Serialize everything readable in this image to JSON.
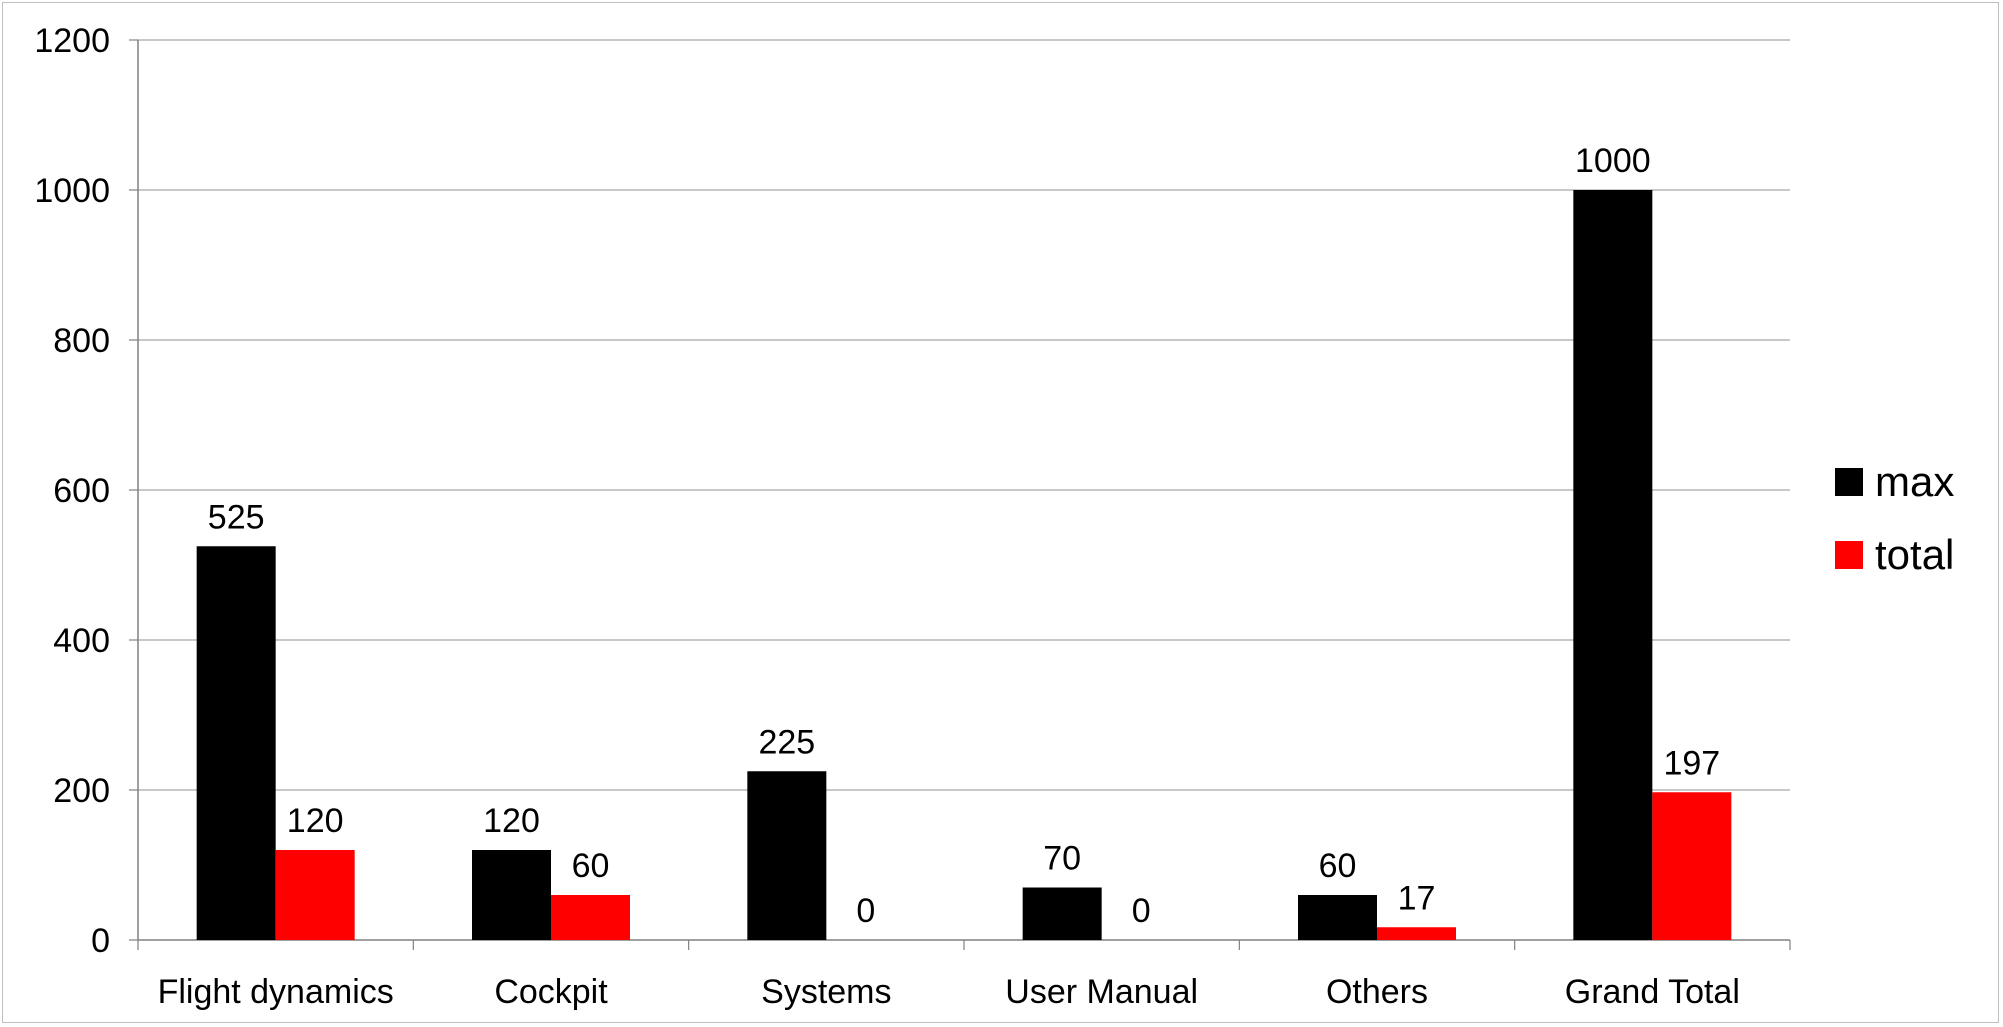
{
  "chart_data": {
    "type": "bar",
    "title": "",
    "xlabel": "",
    "ylabel": "",
    "categories": [
      "Flight dynamics",
      "Cockpit",
      "Systems",
      "User Manual",
      "Others",
      "Grand Total"
    ],
    "series": [
      {
        "name": "max",
        "color": "#000000",
        "values": [
          525,
          120,
          225,
          70,
          60,
          1000
        ]
      },
      {
        "name": "total",
        "color": "#ff0000",
        "values": [
          120,
          60,
          0,
          0,
          17,
          197
        ]
      }
    ],
    "ylim": [
      0,
      1200
    ],
    "yticks": [
      0,
      200,
      400,
      600,
      800,
      1000,
      1200
    ],
    "grid": true,
    "legend_position": "right",
    "data_labels": true
  }
}
